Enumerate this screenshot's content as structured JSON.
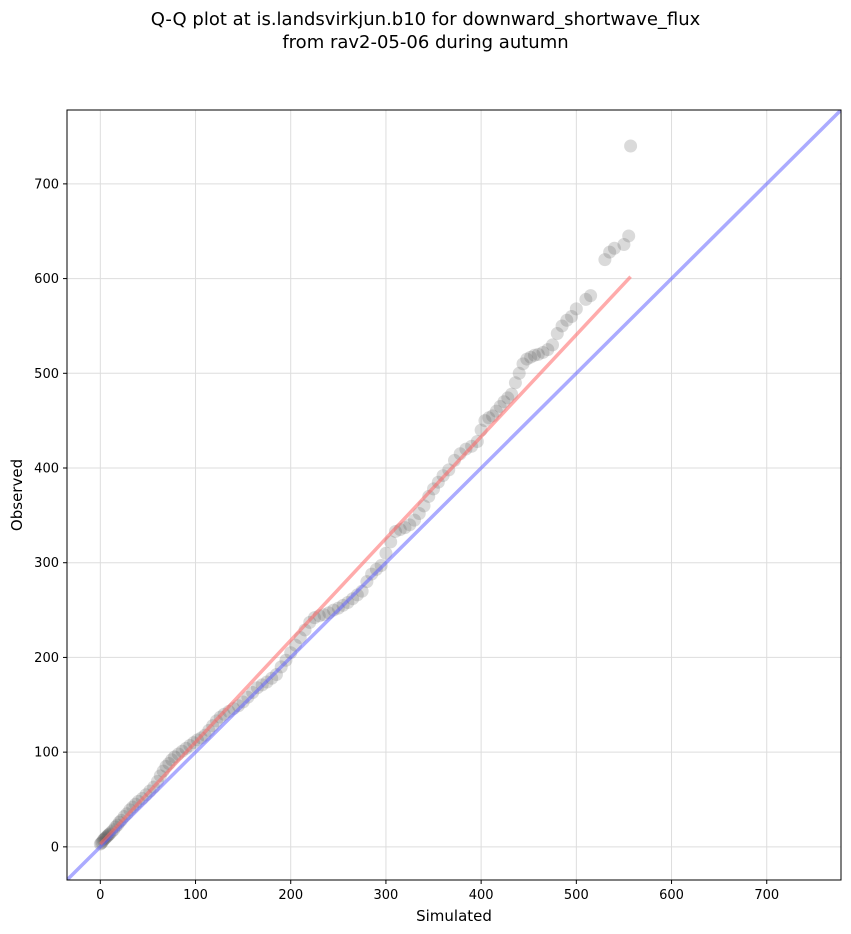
{
  "chart_data": {
    "type": "scatter",
    "title_line1": "Q-Q plot at is.landsvirkjun.b10 for downward_shortwave_flux",
    "title_line2": "from rav2-05-06 during autumn",
    "xlabel": "Simulated",
    "ylabel": "Observed",
    "xlim": [
      -35,
      778
    ],
    "ylim": [
      -35,
      778
    ],
    "xticks": [
      0,
      100,
      200,
      300,
      400,
      500,
      600,
      700
    ],
    "yticks": [
      0,
      100,
      200,
      300,
      400,
      500,
      600,
      700
    ],
    "grid": true,
    "colors": {
      "points": "#555555",
      "identity_line": "#6666ff",
      "fit_line": "#ff6666"
    },
    "identity_line": {
      "x": [
        -35,
        778
      ],
      "y": [
        -35,
        778
      ]
    },
    "fit_line": {
      "x": [
        0,
        557
      ],
      "y": [
        3,
        602
      ]
    },
    "points": {
      "x": [
        0,
        1,
        2,
        3,
        4,
        5,
        6,
        7,
        8,
        9,
        10,
        12,
        14,
        16,
        18,
        20,
        22,
        25,
        28,
        31,
        34,
        37,
        40,
        44,
        48,
        52,
        56,
        60,
        63,
        66,
        69,
        72,
        75,
        78,
        82,
        86,
        90,
        94,
        98,
        102,
        106,
        110,
        114,
        118,
        122,
        126,
        130,
        135,
        140,
        145,
        150,
        155,
        160,
        165,
        170,
        175,
        180,
        185,
        190,
        195,
        200,
        205,
        210,
        215,
        220,
        225,
        230,
        235,
        240,
        245,
        250,
        255,
        260,
        265,
        270,
        275,
        280,
        285,
        290,
        295,
        300,
        305,
        310,
        315,
        320,
        325,
        330,
        335,
        340,
        345,
        350,
        355,
        360,
        366,
        372,
        378,
        384,
        390,
        396,
        400,
        404,
        408,
        412,
        416,
        420,
        424,
        428,
        432,
        436,
        440,
        444,
        448,
        452,
        456,
        460,
        465,
        470,
        475,
        480,
        485,
        490,
        495,
        500,
        510,
        515,
        530,
        535,
        540,
        550,
        555,
        557
      ],
      "y": [
        3,
        4,
        5,
        7,
        8,
        9,
        10,
        11,
        12,
        13,
        14,
        16,
        18,
        21,
        23,
        26,
        28,
        32,
        35,
        39,
        42,
        45,
        48,
        51,
        55,
        59,
        63,
        69,
        75,
        80,
        85,
        88,
        92,
        95,
        98,
        101,
        104,
        107,
        110,
        113,
        115,
        118,
        123,
        128,
        133,
        137,
        140,
        143,
        146,
        149,
        153,
        158,
        163,
        168,
        171,
        174,
        178,
        182,
        190,
        197,
        205,
        213,
        221,
        229,
        237,
        242,
        244,
        245,
        247,
        250,
        252,
        255,
        258,
        262,
        266,
        270,
        280,
        288,
        293,
        297,
        310,
        322,
        333,
        335,
        337,
        340,
        345,
        352,
        360,
        370,
        378,
        385,
        392,
        398,
        408,
        415,
        420,
        423,
        428,
        440,
        450,
        453,
        455,
        460,
        465,
        470,
        474,
        478,
        490,
        500,
        510,
        515,
        517,
        519,
        520,
        522,
        525,
        530,
        542,
        550,
        556,
        560,
        568,
        578,
        582,
        620,
        628,
        632,
        636,
        645,
        740
      ]
    }
  }
}
